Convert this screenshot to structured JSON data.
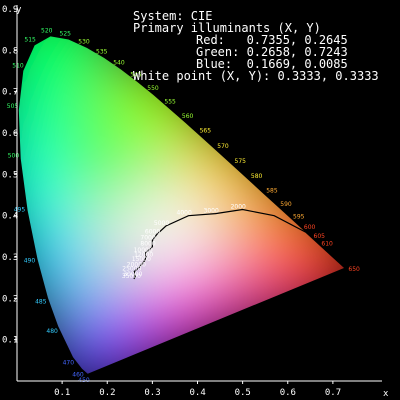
{
  "chart_data": {
    "type": "scatter",
    "title": "",
    "info": {
      "system": "System: CIE",
      "primaries_label": "Primary illuminants (X, Y)",
      "red": "Red:   0.7355, 0.2645",
      "green": "Green: 0.2658, 0.7243",
      "blue": "Blue:  0.1669, 0.0085",
      "white": "White point (X, Y): 0.3333, 0.3333"
    },
    "xlabel": "x",
    "ylabel": "y",
    "xlim": [
      0,
      0.8
    ],
    "ylim": [
      0,
      0.9
    ],
    "x_ticks": [
      0.1,
      0.2,
      0.3,
      0.4,
      0.5,
      0.6,
      0.7
    ],
    "x_tick_labels": [
      "0.1",
      "0.2",
      "0.3",
      "0.4",
      "0.5",
      "0.6",
      "0.7"
    ],
    "y_ticks": [
      0.1,
      0.2,
      0.3,
      0.4,
      0.5,
      0.6,
      0.7,
      0.8,
      0.9
    ],
    "y_tick_labels": [
      "0.1",
      "0.2",
      "0.3",
      "0.4",
      "0.5",
      "0.6",
      "0.7",
      "0.8",
      "0.9"
    ],
    "primaries": {
      "red": [
        0.7355,
        0.2645
      ],
      "green": [
        0.2658,
        0.7243
      ],
      "blue": [
        0.1669,
        0.0085
      ],
      "white": [
        0.3333,
        0.3333
      ]
    },
    "spectral_locus": [
      {
        "label": "450",
        "x": 0.1566,
        "y": 0.0177
      },
      {
        "label": "460",
        "x": 0.144,
        "y": 0.0297
      },
      {
        "label": "470",
        "x": 0.1241,
        "y": 0.0578
      },
      {
        "label": "480",
        "x": 0.0913,
        "y": 0.1327
      },
      {
        "label": "485",
        "x": 0.0687,
        "y": 0.2007
      },
      {
        "label": "490",
        "x": 0.0454,
        "y": 0.295
      },
      {
        "label": "495",
        "x": 0.0235,
        "y": 0.4127
      },
      {
        "label": "500",
        "x": 0.0082,
        "y": 0.5384
      },
      {
        "label": "505",
        "x": 0.0039,
        "y": 0.6548
      },
      {
        "label": "510",
        "x": 0.0139,
        "y": 0.7502
      },
      {
        "label": "515",
        "x": 0.0389,
        "y": 0.812
      },
      {
        "label": "520",
        "x": 0.0743,
        "y": 0.8338
      },
      {
        "label": "525",
        "x": 0.1142,
        "y": 0.8262
      },
      {
        "label": "530",
        "x": 0.1547,
        "y": 0.8059
      },
      {
        "label": "535",
        "x": 0.1929,
        "y": 0.7816
      },
      {
        "label": "540",
        "x": 0.2296,
        "y": 0.7543
      },
      {
        "label": "545",
        "x": 0.2658,
        "y": 0.7243
      },
      {
        "label": "550",
        "x": 0.3016,
        "y": 0.6923
      },
      {
        "label": "555",
        "x": 0.3373,
        "y": 0.6589
      },
      {
        "label": "560",
        "x": 0.3731,
        "y": 0.6245
      },
      {
        "label": "565",
        "x": 0.4087,
        "y": 0.5896
      },
      {
        "label": "570",
        "x": 0.4441,
        "y": 0.5547
      },
      {
        "label": "575",
        "x": 0.4788,
        "y": 0.5202
      },
      {
        "label": "580",
        "x": 0.5125,
        "y": 0.4866
      },
      {
        "label": "585",
        "x": 0.5448,
        "y": 0.4544
      },
      {
        "label": "590",
        "x": 0.5752,
        "y": 0.4242
      },
      {
        "label": "595",
        "x": 0.6029,
        "y": 0.3965
      },
      {
        "label": "600",
        "x": 0.627,
        "y": 0.3725
      },
      {
        "label": "605",
        "x": 0.6482,
        "y": 0.3514
      },
      {
        "label": "610",
        "x": 0.6658,
        "y": 0.334
      },
      {
        "label": "650",
        "x": 0.726,
        "y": 0.274
      }
    ],
    "planckian_locus": [
      {
        "label": "35000",
        "x": 0.259,
        "y": 0.247
      },
      {
        "label": "30000",
        "x": 0.262,
        "y": 0.252
      },
      {
        "label": "25000",
        "x": 0.26,
        "y": 0.265
      },
      {
        "label": "20000",
        "x": 0.27,
        "y": 0.274
      },
      {
        "label": "15000",
        "x": 0.281,
        "y": 0.288
      },
      {
        "label": "12000",
        "x": 0.286,
        "y": 0.299
      },
      {
        "label": "10000",
        "x": 0.285,
        "y": 0.31
      },
      {
        "label": "8000",
        "x": 0.3,
        "y": 0.325
      },
      {
        "label": "7000",
        "x": 0.3,
        "y": 0.34
      },
      {
        "label": "6000",
        "x": 0.31,
        "y": 0.355
      },
      {
        "label": "5000",
        "x": 0.33,
        "y": 0.375
      },
      {
        "label": "4000",
        "x": 0.38,
        "y": 0.4
      },
      {
        "label": "3000",
        "x": 0.44,
        "y": 0.405
      },
      {
        "label": "2000",
        "x": 0.5,
        "y": 0.415
      },
      {
        "label": "",
        "x": 0.57,
        "y": 0.4
      },
      {
        "label": "",
        "x": 0.64,
        "y": 0.36
      },
      {
        "label": "",
        "x": 0.695,
        "y": 0.305
      },
      {
        "label": "",
        "x": 0.726,
        "y": 0.274
      }
    ],
    "colors": {
      "background": "#000000",
      "axis": "#ffffff",
      "text": "#ffffff",
      "locus_curve": "#000000"
    }
  }
}
